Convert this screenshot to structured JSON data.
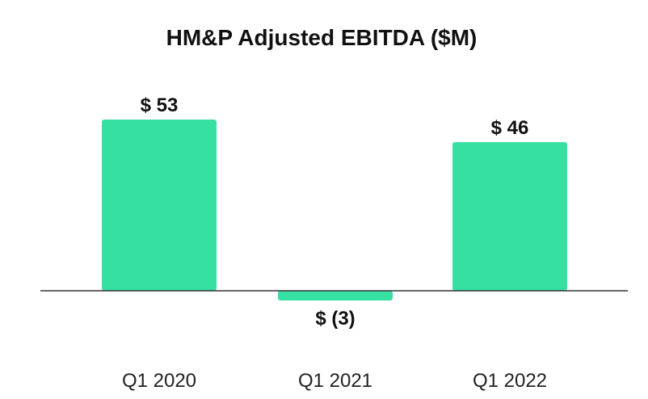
{
  "chart_data": {
    "type": "bar",
    "title": "HM&P Adjusted EBITDA ($M)",
    "categories": [
      "Q1 2020",
      "Q1 2021",
      "Q1 2022"
    ],
    "values": [
      53,
      -3,
      46
    ],
    "data_labels": [
      "$ 53",
      "$ (3)",
      "$ 46"
    ],
    "xlabel": "",
    "ylabel": "",
    "ylim": [
      -3,
      53
    ],
    "grid": false,
    "legend": "none",
    "colors": {
      "bar": "#35e0a1",
      "axis": "#333333",
      "text": "#111111"
    }
  }
}
